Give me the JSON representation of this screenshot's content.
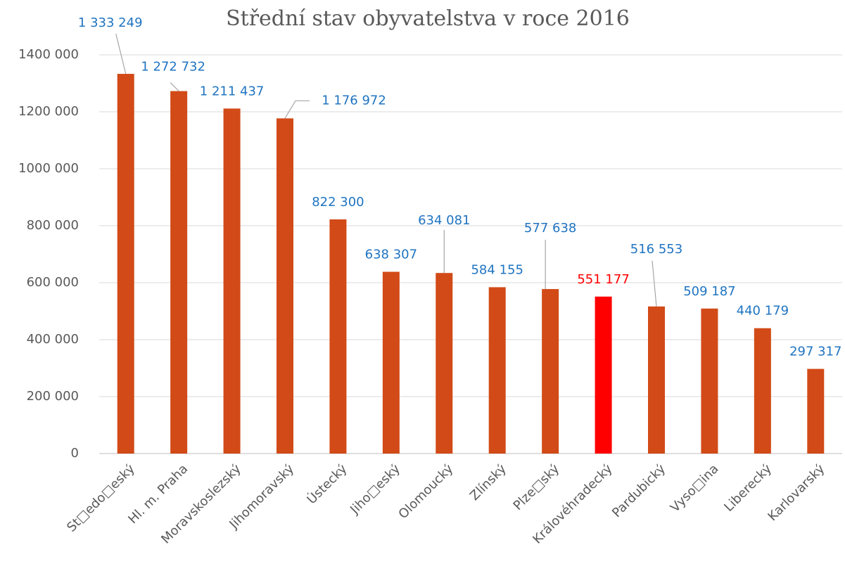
{
  "chart_data": {
    "type": "bar",
    "title": "Střední stav obyvatelstva v roce 2016",
    "categories": [
      "St□edo□eský",
      "Hl. m. Praha",
      "Moravskoslezský",
      "Jihomoravský",
      "Ústecký",
      "Jiho□eský",
      "Olomoucký",
      "Zlínský",
      "Plze□ský",
      "Královéhradecký",
      "Pardubický",
      "Vyso□ina",
      "Liberecký",
      "Karlovarský"
    ],
    "values": [
      1333249,
      1272732,
      1211437,
      1176972,
      822300,
      638307,
      634081,
      584155,
      577638,
      551177,
      516553,
      509187,
      440179,
      297317
    ],
    "value_labels": [
      "1 333 249",
      "1 272 732",
      "1 211 437",
      "1 176 972",
      "822 300",
      "638 307",
      "634 081",
      "584 155",
      "577 638",
      "551 177",
      "516 553",
      "509 187",
      "440 179",
      "297 317"
    ],
    "colors": [
      "#d24a17",
      "#d24a17",
      "#d24a17",
      "#d24a17",
      "#d24a17",
      "#d24a17",
      "#d24a17",
      "#d24a17",
      "#d24a17",
      "#ff0000",
      "#d24a17",
      "#d24a17",
      "#d24a17",
      "#d24a17"
    ],
    "label_colors": [
      "#1f74c1",
      "#1f74c1",
      "#1f74c1",
      "#1f74c1",
      "#1f74c1",
      "#1f74c1",
      "#1f74c1",
      "#1f74c1",
      "#1f74c1",
      "#ff0000",
      "#1f74c1",
      "#1f74c1",
      "#1f74c1",
      "#1f74c1"
    ],
    "ylim": [
      0,
      1400000
    ],
    "yticks": [
      0,
      {
        "value": 200000,
        "label": "200 000"
      },
      {
        "value": 400000,
        "label": "400 000"
      },
      {
        "value": 600000,
        "label": "600 000"
      },
      {
        "value": 800000,
        "label": "800 000"
      },
      {
        "value": 1000000,
        "label": "1000 000"
      },
      {
        "value": 1200000,
        "label": "1200 000"
      },
      {
        "value": 1400000,
        "label": "1400 000"
      }
    ],
    "grid": true
  }
}
